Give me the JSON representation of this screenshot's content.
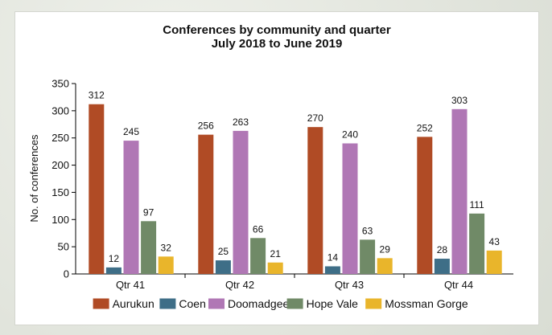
{
  "chart_data": {
    "type": "bar",
    "title": "Conferences by community and quarter",
    "subtitle": "July 2018 to June 2019",
    "xlabel": "",
    "ylabel": "No. of conferences",
    "ylim": [
      0,
      350
    ],
    "yticks": [
      0,
      50,
      100,
      150,
      200,
      250,
      300,
      350
    ],
    "categories": [
      "Qtr 41",
      "Qtr 42",
      "Qtr 43",
      "Qtr 44"
    ],
    "series": [
      {
        "name": "Aurukun",
        "color": "#b04b25",
        "values": [
          312,
          256,
          270,
          252
        ]
      },
      {
        "name": "Coen",
        "color": "#3e6e87",
        "values": [
          12,
          25,
          14,
          28
        ]
      },
      {
        "name": "Doomadgee",
        "color": "#b077b5",
        "values": [
          245,
          263,
          240,
          303
        ]
      },
      {
        "name": "Hope Vale",
        "color": "#708a67",
        "values": [
          97,
          66,
          63,
          111
        ]
      },
      {
        "name": "Mossman Gorge",
        "color": "#e9b52b",
        "values": [
          32,
          21,
          29,
          43
        ]
      }
    ],
    "grid": false,
    "legend": "bottom",
    "data_labels": true
  }
}
